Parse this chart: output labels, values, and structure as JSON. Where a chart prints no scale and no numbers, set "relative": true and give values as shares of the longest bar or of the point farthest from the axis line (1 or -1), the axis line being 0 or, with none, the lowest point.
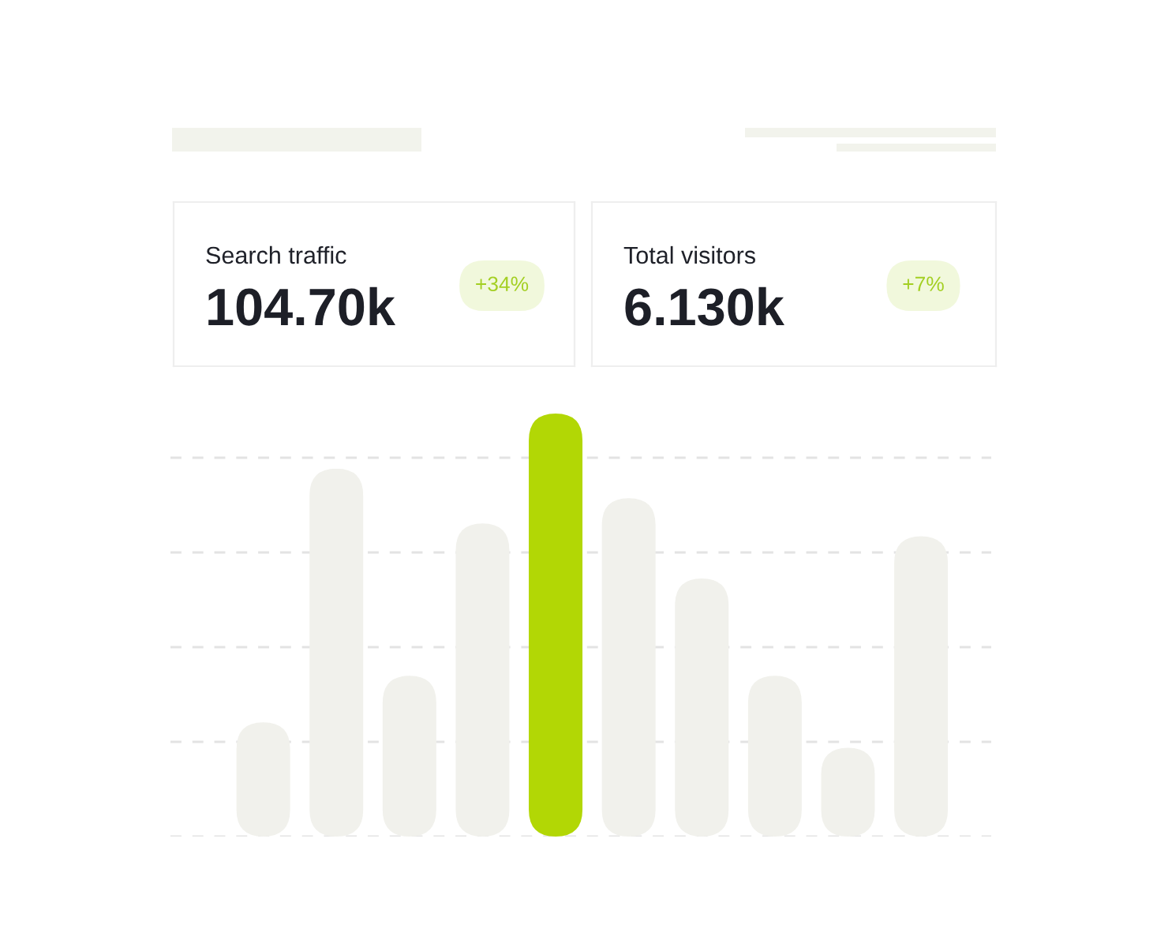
{
  "chart_data": [
    {
      "type": "other",
      "title": "Search traffic",
      "subtitle": "104.70k",
      "annotations": [
        "+34%"
      ]
    },
    {
      "type": "other",
      "title": "Total visitors",
      "subtitle": "6.130k",
      "annotations": [
        "+7%"
      ]
    },
    {
      "type": "bar",
      "relative": true,
      "categories": [
        null,
        null,
        null,
        null,
        null,
        null,
        null,
        null,
        null,
        null
      ],
      "values": [
        0.27,
        0.87,
        0.38,
        0.74,
        1.0,
        0.8,
        0.61,
        0.38,
        0.21,
        0.71
      ],
      "colors": [
        "#f1f1ec",
        "#f1f1ec",
        "#f1f1ec",
        "#f1f1ec",
        "#b2d705",
        "#f1f1ec",
        "#f1f1ec",
        "#f1f1ec",
        "#f1f1ec",
        "#f1f1ec"
      ],
      "grid": true
    }
  ]
}
